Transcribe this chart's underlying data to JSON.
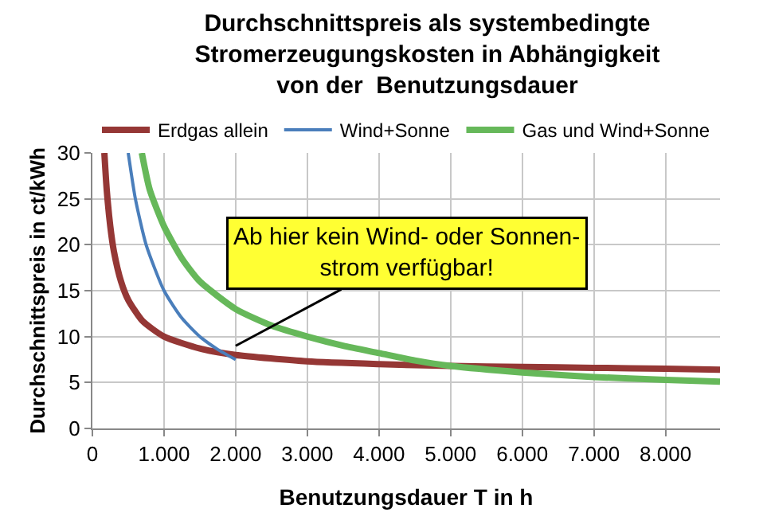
{
  "chart_data": {
    "type": "line",
    "title": "Durchschnittspreis als systembedingte\nStromerzeugungskosten in Abhängigkeit\nvon der  Benutzungsdauer",
    "xlabel": "Benutzungsdauer T in h",
    "ylabel": "Durchschnittspreis in ct/kWh",
    "series": [
      {
        "name": "Erdgas allein",
        "color": "#953735",
        "x": [
          167,
          200,
          250,
          300,
          400,
          500,
          700,
          1000,
          1500,
          2000,
          3000,
          4000,
          5000,
          6000,
          7000,
          8000,
          8760
        ],
        "values": [
          30,
          26,
          22,
          19.3,
          16,
          14,
          11.7,
          10,
          8.7,
          8,
          7.3,
          7,
          6.8,
          6.7,
          6.6,
          6.5,
          6.4
        ]
      },
      {
        "name": "Wind+Sonne",
        "color": "#4a7ebb",
        "x": [
          500,
          600,
          750,
          1000,
          1250,
          1500,
          1750,
          2000
        ],
        "values": [
          30,
          25,
          20,
          15,
          12,
          10,
          8.6,
          7.5
        ]
      },
      {
        "name": "Gas und Wind+Sonne",
        "color": "#66b85a",
        "x": [
          690,
          800,
          1000,
          1250,
          1500,
          2000,
          2500,
          3000,
          3500,
          4000,
          4500,
          5000,
          6000,
          7000,
          8000,
          8760
        ],
        "values": [
          30,
          26,
          22,
          18.5,
          16,
          13,
          11.2,
          10,
          9,
          8.2,
          7.4,
          6.8,
          6.1,
          5.6,
          5.3,
          5.1
        ]
      }
    ],
    "xlim": [
      0,
      8760
    ],
    "xticks": [
      0,
      {
        "value": 1000,
        "label": "1.000"
      },
      {
        "value": 2000,
        "label": "2.000"
      },
      {
        "value": 3000,
        "label": "3.000"
      },
      {
        "value": 4000,
        "label": "4.000"
      },
      {
        "value": 5000,
        "label": "5.000"
      },
      {
        "value": 6000,
        "label": "6.000"
      },
      {
        "value": 7000,
        "label": "7.000"
      },
      {
        "value": 8000,
        "label": "8.000"
      }
    ],
    "ylim": [
      0,
      30
    ],
    "yticks": [
      0,
      5,
      10,
      15,
      20,
      25,
      30
    ],
    "grid": true,
    "legend": "top",
    "marker": "none",
    "line_style": "solid",
    "annotations": [
      {
        "text": "Ab hier kein Wind- oder Sonnen-\nstrom verfügbar!",
        "x": 2000,
        "y": 9
      }
    ]
  }
}
